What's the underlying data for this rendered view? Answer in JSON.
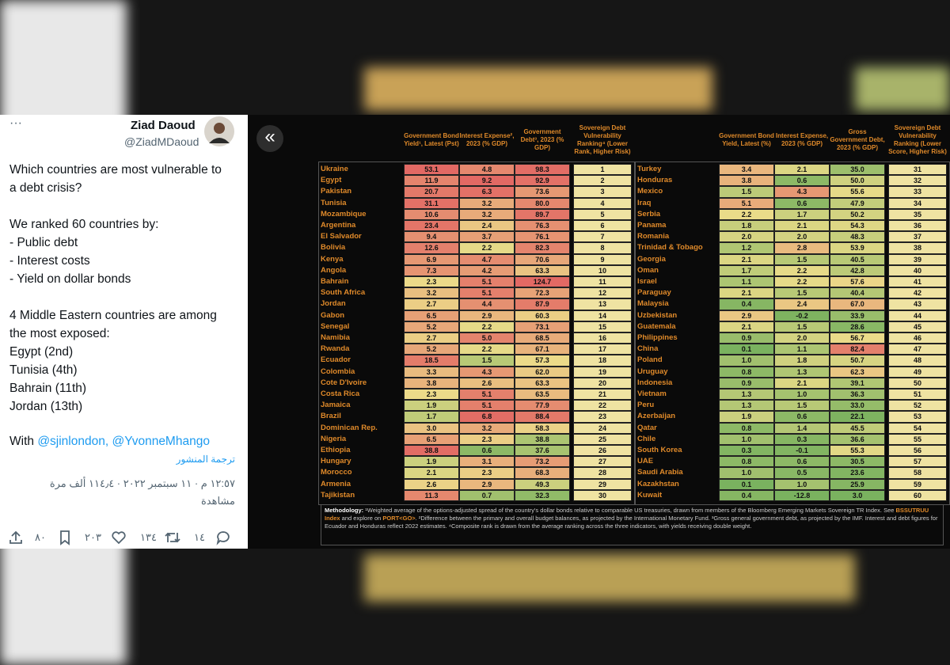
{
  "tweet": {
    "more": "···",
    "author": "Ziad Daoud",
    "handle": "@ZiadMDaoud",
    "paragraphs": [
      [
        "Which countries are most vulnerable to",
        "a debt crisis?"
      ],
      [
        "We ranked 60 countries by:",
        "- Public debt",
        "- Interest costs",
        "- Yield on dollar bonds"
      ],
      [
        "4 Middle Eastern countries are among",
        "the most exposed:",
        "Egypt (2nd)",
        "Tunisia (4th)",
        "Bahrain (11th)",
        "Jordan (13th)"
      ]
    ],
    "with": "With",
    "mentions": [
      "@sjinlondon,",
      "@YvonneMhango"
    ],
    "translate": "ترجمة المنشور",
    "timestamp": "١٢:٥٧ م · ١١ سبتمبر ٢٠٢٢ · ١١٤٫٤ ألف مرة",
    "views": "مشاهدة",
    "counts": {
      "bookmarks": "٨٠",
      "likes": "٢٠٣",
      "retweets": "١٣٤",
      "replies": "١٤"
    }
  },
  "table": {
    "back": "«",
    "headers_left": [
      "Government Bond Yield¹, Latest (Pst)",
      "Interest Expense², 2023 (% GDP)",
      "Government Debt³, 2023 (% GDP)",
      "Sovereign Debt Vulnerability Ranking⁴ (Lower Rank, Higher Risk)"
    ],
    "headers_right": [
      "Government Bond Yield, Latest (%)",
      "Interest Expense, 2023 (% GDP)",
      "Gross Government Debt, 2023 (% GDP)",
      "Sovereign Debt Vulnerability Ranking (Lower Score, Higher Risk)"
    ],
    "rows_left": [
      [
        "Ukraine",
        "53.1",
        "4.8",
        "98.3",
        "1"
      ],
      [
        "Egypt",
        "11.9",
        "9.2",
        "92.9",
        "2"
      ],
      [
        "Pakistan",
        "20.7",
        "6.3",
        "73.6",
        "3"
      ],
      [
        "Tunisia",
        "31.1",
        "3.2",
        "80.0",
        "4"
      ],
      [
        "Mozambique",
        "10.6",
        "3.2",
        "89.7",
        "5"
      ],
      [
        "Argentina",
        "23.4",
        "2.4",
        "76.3",
        "6"
      ],
      [
        "El Salvador",
        "9.4",
        "3.7",
        "76.1",
        "7"
      ],
      [
        "Bolivia",
        "12.6",
        "2.2",
        "82.3",
        "8"
      ],
      [
        "Kenya",
        "6.9",
        "4.7",
        "70.6",
        "9"
      ],
      [
        "Angola",
        "7.3",
        "4.2",
        "63.3",
        "10"
      ],
      [
        "Bahrain",
        "2.3",
        "5.1",
        "124.7",
        "11"
      ],
      [
        "South Africa",
        "3.2",
        "5.1",
        "72.3",
        "12"
      ],
      [
        "Jordan",
        "2.7",
        "4.4",
        "87.9",
        "13"
      ],
      [
        "Gabon",
        "6.5",
        "2.9",
        "60.3",
        "14"
      ],
      [
        "Senegal",
        "5.2",
        "2.2",
        "73.1",
        "15"
      ],
      [
        "Namibia",
        "2.7",
        "5.0",
        "68.5",
        "16"
      ],
      [
        "Rwanda",
        "5.2",
        "2.2",
        "67.1",
        "17"
      ],
      [
        "Ecuador",
        "18.5",
        "1.5",
        "57.3",
        "18"
      ],
      [
        "Colombia",
        "3.3",
        "4.3",
        "62.0",
        "19"
      ],
      [
        "Cote D'Ivoire",
        "3.8",
        "2.6",
        "63.3",
        "20"
      ],
      [
        "Costa Rica",
        "2.3",
        "5.1",
        "63.5",
        "21"
      ],
      [
        "Jamaica",
        "1.9",
        "5.1",
        "77.9",
        "22"
      ],
      [
        "Brazil",
        "1.7",
        "6.8",
        "88.4",
        "23"
      ],
      [
        "Dominican Rep.",
        "3.0",
        "3.2",
        "58.3",
        "24"
      ],
      [
        "Nigeria",
        "6.5",
        "2.3",
        "38.8",
        "25"
      ],
      [
        "Ethiopia",
        "38.8",
        "0.6",
        "37.6",
        "26"
      ],
      [
        "Hungary",
        "1.9",
        "3.1",
        "73.2",
        "27"
      ],
      [
        "Morocco",
        "2.1",
        "2.3",
        "68.3",
        "28"
      ],
      [
        "Armenia",
        "2.6",
        "2.9",
        "49.3",
        "29"
      ],
      [
        "Tajikistan",
        "11.3",
        "0.7",
        "32.3",
        "30"
      ]
    ],
    "rows_right": [
      [
        "Turkey",
        "3.4",
        "2.1",
        "35.0",
        "31"
      ],
      [
        "Honduras",
        "3.8",
        "0.6",
        "50.0",
        "32"
      ],
      [
        "Mexico",
        "1.5",
        "4.3",
        "55.6",
        "33"
      ],
      [
        "Iraq",
        "5.1",
        "0.6",
        "47.9",
        "34"
      ],
      [
        "Serbia",
        "2.2",
        "1.7",
        "50.2",
        "35"
      ],
      [
        "Panama",
        "1.8",
        "2.1",
        "54.3",
        "36"
      ],
      [
        "Romania",
        "2.0",
        "2.0",
        "48.3",
        "37"
      ],
      [
        "Trinidad & Tobago",
        "1.2",
        "2.8",
        "53.9",
        "38"
      ],
      [
        "Georgia",
        "2.1",
        "1.5",
        "40.5",
        "39"
      ],
      [
        "Oman",
        "1.7",
        "2.2",
        "42.8",
        "40"
      ],
      [
        "Israel",
        "1.1",
        "2.2",
        "57.6",
        "41"
      ],
      [
        "Paraguay",
        "2.1",
        "1.5",
        "40.4",
        "42"
      ],
      [
        "Malaysia",
        "0.4",
        "2.4",
        "67.0",
        "43"
      ],
      [
        "Uzbekistan",
        "2.9",
        "-0.2",
        "33.9",
        "44"
      ],
      [
        "Guatemala",
        "2.1",
        "1.5",
        "28.6",
        "45"
      ],
      [
        "Philippines",
        "0.9",
        "2.0",
        "56.7",
        "46"
      ],
      [
        "China",
        "0.1",
        "1.1",
        "82.4",
        "47"
      ],
      [
        "Poland",
        "1.0",
        "1.8",
        "50.7",
        "48"
      ],
      [
        "Uruguay",
        "0.8",
        "1.3",
        "62.3",
        "49"
      ],
      [
        "Indonesia",
        "0.9",
        "2.1",
        "39.1",
        "50"
      ],
      [
        "Vietnam",
        "1.3",
        "1.0",
        "36.3",
        "51"
      ],
      [
        "Peru",
        "1.3",
        "1.5",
        "33.0",
        "52"
      ],
      [
        "Azerbaijan",
        "1.9",
        "0.6",
        "22.1",
        "53"
      ],
      [
        "Qatar",
        "0.8",
        "1.4",
        "45.5",
        "54"
      ],
      [
        "Chile",
        "1.0",
        "0.3",
        "36.6",
        "55"
      ],
      [
        "South Korea",
        "0.3",
        "-0.1",
        "55.3",
        "56"
      ],
      [
        "UAE",
        "0.8",
        "0.6",
        "30.5",
        "57"
      ],
      [
        "Saudi Arabia",
        "1.0",
        "0.5",
        "23.6",
        "58"
      ],
      [
        "Kazakhstan",
        "0.1",
        "1.0",
        "25.9",
        "59"
      ],
      [
        "Kuwait",
        "0.4",
        "-12.8",
        "3.0",
        "60"
      ]
    ],
    "methodology": {
      "label": "Methodology:",
      "segments": [
        " ¹Weighted average of the options-adjusted spread of the country's dollar bonds relative to comparable US treasuries, drawn from members of the Bloomberg Emerging Markets Sovereign TR Index. See ",
        "BSSUTRUU Index",
        " and explore on ",
        "PORT<GO>",
        ". ²Difference between the primary and overall budget balances, as projected by the International Monetary Fund. ³Gross general government debt, as projected by the IMF. Interest and debt figures for Ecuador and Honduras reflect 2022 estimates. ⁴Composite rank is drawn from the average ranking across the three indicators, with yields receiving double weight."
      ]
    }
  }
}
